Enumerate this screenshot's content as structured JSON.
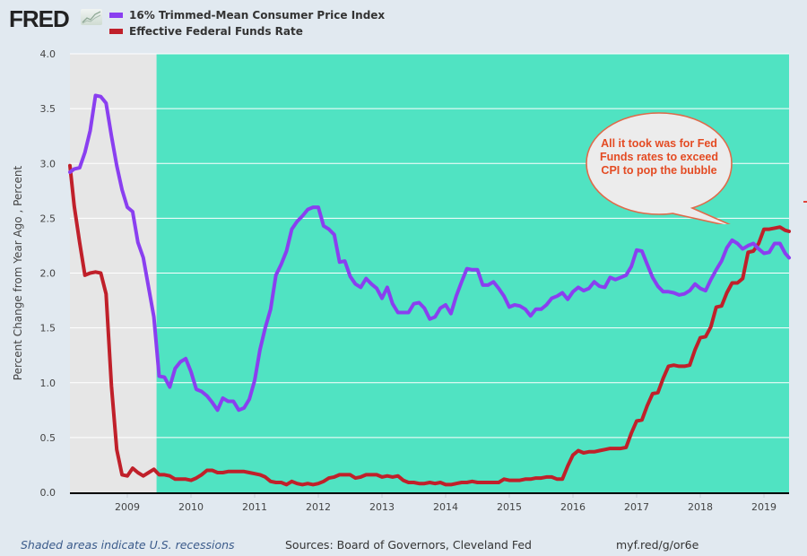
{
  "header": {
    "logo_text": "FRED",
    "logo_icon": "fred-chart-icon"
  },
  "legend": [
    {
      "label": "16% Trimmed-Mean Consumer Price Index",
      "color": "#8a3ff0"
    },
    {
      "label": "Effective Federal Funds Rate",
      "color": "#c0202a"
    }
  ],
  "annotation": {
    "text": "All it took was for Fed Funds rates to exceed CPI to pop the bubble",
    "text_color": "#e44b23",
    "border_color": "#e06a4a",
    "fill_color": "#ececec"
  },
  "footer": {
    "recession_note": "Shaded areas indicate U.S. recessions",
    "sources": "Sources: Board of Governors, Cleveland Fed",
    "url": "myf.red/g/or6e"
  },
  "colors": {
    "plot_bg": "#50e3c2",
    "recession_bg": "#e6e6e6",
    "page_bg": "#e1e9f0",
    "grid": "#ffffff"
  },
  "chart_data": {
    "type": "line",
    "title": "",
    "xlabel": "",
    "ylabel": "Percent Change from Year Ago , Percent",
    "ylim": [
      0,
      4
    ],
    "xlim": [
      "2008-02",
      "2019-06"
    ],
    "yticks": [
      "0.0",
      "0.5",
      "1.0",
      "1.5",
      "2.0",
      "2.5",
      "3.0",
      "3.5",
      "4.0"
    ],
    "xticks": [
      "2009",
      "2010",
      "2011",
      "2012",
      "2013",
      "2014",
      "2015",
      "2016",
      "2017",
      "2018",
      "2019"
    ],
    "grid": true,
    "legend_position": "top-left",
    "recessions": [
      {
        "start": "2008-02",
        "end": "2009-06"
      }
    ],
    "start_month": "2008-02",
    "series": [
      {
        "name": "16% Trimmed-Mean Consumer Price Index",
        "color": "#8a3ff0",
        "values": [
          2.92,
          2.95,
          2.96,
          3.1,
          3.3,
          3.62,
          3.61,
          3.55,
          3.25,
          2.98,
          2.76,
          2.6,
          2.56,
          2.28,
          2.14,
          1.87,
          1.6,
          1.06,
          1.05,
          0.96,
          1.13,
          1.19,
          1.22,
          1.1,
          0.94,
          0.92,
          0.88,
          0.82,
          0.75,
          0.86,
          0.83,
          0.83,
          0.75,
          0.77,
          0.85,
          1.02,
          1.3,
          1.5,
          1.67,
          1.98,
          2.08,
          2.2,
          2.4,
          2.47,
          2.52,
          2.58,
          2.6,
          2.6,
          2.43,
          2.4,
          2.35,
          2.1,
          2.11,
          1.97,
          1.9,
          1.87,
          1.95,
          1.9,
          1.86,
          1.77,
          1.87,
          1.72,
          1.64,
          1.64,
          1.64,
          1.72,
          1.73,
          1.68,
          1.58,
          1.6,
          1.68,
          1.71,
          1.63,
          1.79,
          1.92,
          2.04,
          2.03,
          2.03,
          1.89,
          1.89,
          1.92,
          1.86,
          1.79,
          1.69,
          1.71,
          1.7,
          1.67,
          1.61,
          1.67,
          1.67,
          1.71,
          1.77,
          1.79,
          1.82,
          1.76,
          1.83,
          1.87,
          1.84,
          1.86,
          1.92,
          1.88,
          1.87,
          1.96,
          1.94,
          1.96,
          1.98,
          2.06,
          2.21,
          2.2,
          2.08,
          1.96,
          1.88,
          1.83,
          1.83,
          1.82,
          1.8,
          1.81,
          1.84,
          1.9,
          1.86,
          1.84,
          1.94,
          2.03,
          2.11,
          2.23,
          2.3,
          2.27,
          2.22,
          2.25,
          2.27,
          2.22,
          2.18,
          2.19,
          2.27,
          2.27,
          2.18,
          2.14
        ]
      },
      {
        "name": "Effective Federal Funds Rate",
        "color": "#c0202a",
        "values": [
          2.98,
          2.61,
          2.28,
          1.98,
          2.0,
          2.01,
          2.0,
          1.81,
          0.97,
          0.39,
          0.16,
          0.15,
          0.22,
          0.18,
          0.15,
          0.18,
          0.21,
          0.16,
          0.16,
          0.15,
          0.12,
          0.12,
          0.12,
          0.11,
          0.13,
          0.16,
          0.2,
          0.2,
          0.18,
          0.18,
          0.19,
          0.19,
          0.19,
          0.19,
          0.18,
          0.17,
          0.16,
          0.14,
          0.1,
          0.09,
          0.09,
          0.07,
          0.1,
          0.08,
          0.07,
          0.08,
          0.07,
          0.08,
          0.1,
          0.13,
          0.14,
          0.16,
          0.16,
          0.16,
          0.13,
          0.14,
          0.16,
          0.16,
          0.16,
          0.14,
          0.15,
          0.14,
          0.15,
          0.11,
          0.09,
          0.09,
          0.08,
          0.08,
          0.09,
          0.08,
          0.09,
          0.07,
          0.07,
          0.08,
          0.09,
          0.09,
          0.1,
          0.09,
          0.09,
          0.09,
          0.09,
          0.09,
          0.12,
          0.11,
          0.11,
          0.11,
          0.12,
          0.12,
          0.13,
          0.13,
          0.14,
          0.14,
          0.12,
          0.12,
          0.24,
          0.34,
          0.38,
          0.36,
          0.37,
          0.37,
          0.38,
          0.39,
          0.4,
          0.4,
          0.4,
          0.41,
          0.54,
          0.65,
          0.66,
          0.79,
          0.9,
          0.91,
          1.04,
          1.15,
          1.16,
          1.15,
          1.15,
          1.16,
          1.3,
          1.41,
          1.42,
          1.51,
          1.69,
          1.7,
          1.82,
          1.91,
          1.91,
          1.95,
          2.19,
          2.2,
          2.27,
          2.4,
          2.4,
          2.41,
          2.42,
          2.39,
          2.38
        ]
      }
    ]
  }
}
